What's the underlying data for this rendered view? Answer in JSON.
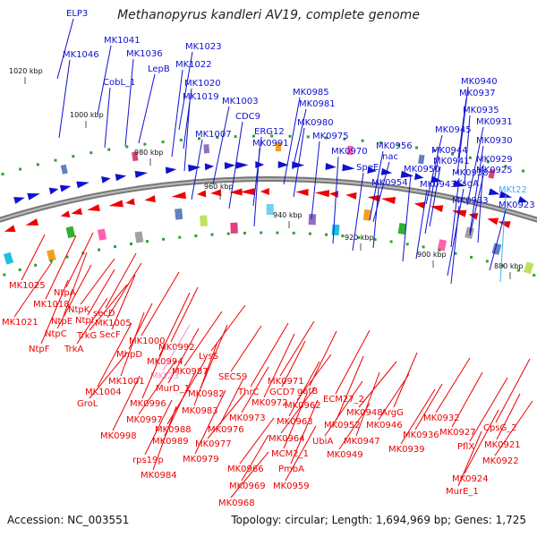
{
  "title": "Methanopyrus kandleri AV19, complete genome",
  "footer": {
    "accession": "Accession: NC_003551",
    "summary": "Topology: circular; Length: 1,694,969 bp; Genes: 1,725"
  },
  "colors": {
    "forward": "#1010d0",
    "reverse": "#ee0000",
    "unnamed_forward": "#40b0f0",
    "unnamed_reverse": "#f090d0",
    "backbone": "#808080"
  },
  "ticks": [
    "1020 kbp",
    "1000 kbp",
    "980 kbp",
    "960 kbp",
    "940 kbp",
    "920 kbp",
    "900 kbp",
    "880 kbp"
  ],
  "forward_labels": [
    "ELP3",
    "MK1041",
    "MK1046",
    "MK1036",
    "CobL_1",
    "LepB",
    "MK1023",
    "MK1022",
    "MK1020",
    "MK1019",
    "MK1003",
    "CDC9",
    "MK1007",
    "ERG12",
    "MK0991",
    "MK0985",
    "MK0981",
    "MK0980",
    "MK0975",
    "MK0970",
    "nac",
    "MK0956",
    "SpeE",
    "MK0950",
    "MK0954",
    "MK0945",
    "MK0944",
    "MK0940",
    "MK0937",
    "MK0935",
    "MK0931",
    "MK0930",
    "MK0941",
    "MK0938",
    "MK0929",
    "KsgA",
    "MK0925",
    "MK0943",
    "MK0933",
    "MKt22",
    "MK0923"
  ],
  "reverse_labels": [
    "MK1025",
    "NtpA",
    "MK1018",
    "NtpK",
    "MK1021",
    "NtpE",
    "NtpI",
    "secD",
    "NtpC",
    "TrkG",
    "SecF",
    "NtpF",
    "TrkA",
    "MK1005",
    "MK1000",
    "MhpD",
    "MK0992",
    "MK0994",
    "LysS",
    "MK0987",
    "MK1001",
    "MKt23",
    "MurD_1",
    "MK1004",
    "GroL",
    "MK0996",
    "MK0982",
    "SEC59",
    "MK0971",
    "ThrC",
    "GCD7",
    "gatB",
    "MK0972",
    "MK0962",
    "MK0997",
    "MK0983",
    "MK0973",
    "MK0963",
    "ECM27_2",
    "MK0948",
    "ArgG",
    "MK0952",
    "MK0946",
    "MK0932",
    "MK0988",
    "MK0976",
    "MK0998",
    "MK0989",
    "MK0964",
    "UbiA",
    "MK0947",
    "MK0936",
    "MK0927",
    "CpsG_2",
    "MK0977",
    "MCM2_1",
    "PmbA",
    "MK0949",
    "MK0939",
    "PflX",
    "MK0921",
    "rps19p",
    "MK0979",
    "MK0966",
    "MK0922",
    "MK0984",
    "MK0969",
    "MK0959",
    "MK0924",
    "MK0968",
    "MurE_1"
  ]
}
